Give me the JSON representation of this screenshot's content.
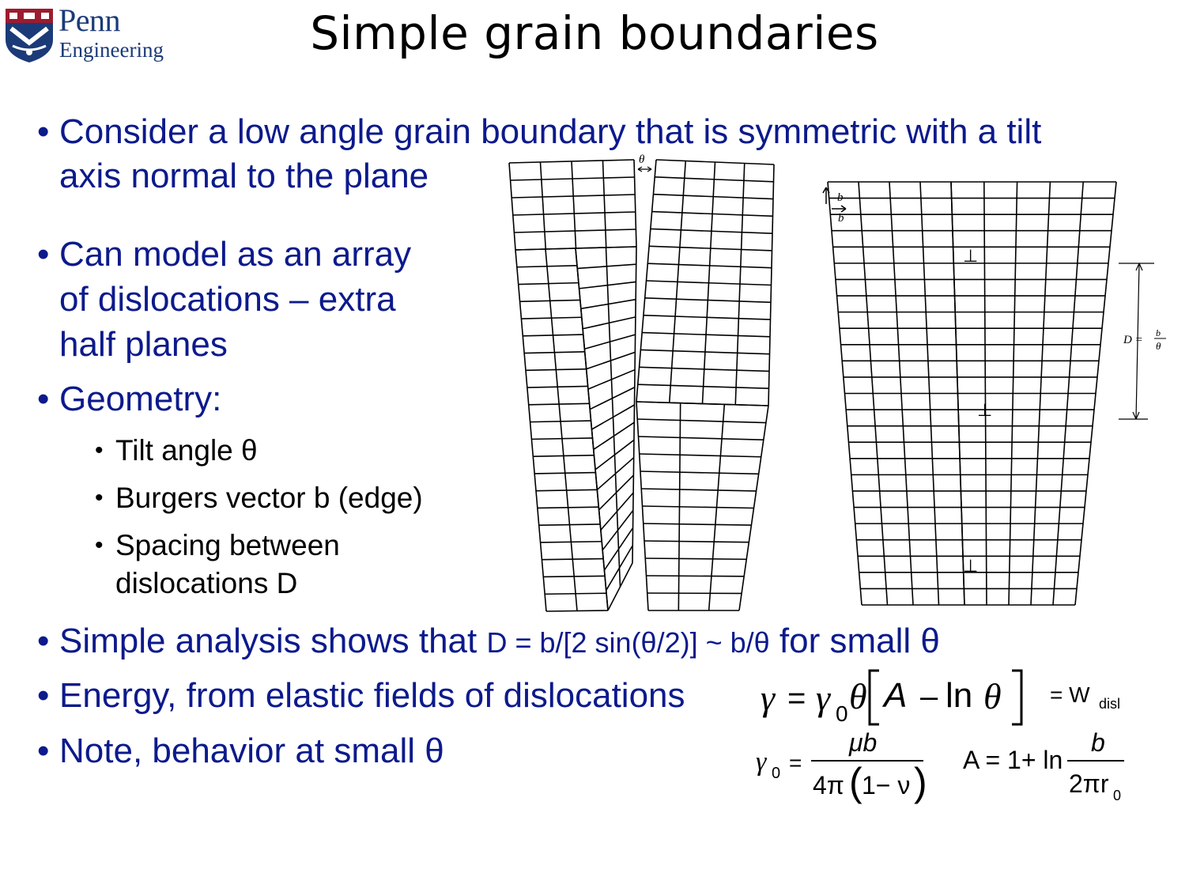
{
  "logo": {
    "line1": "Penn",
    "line2": "Engineering"
  },
  "title": "Simple grain boundaries",
  "bullets": {
    "b1_line1": "Consider a low angle grain boundary that is symmetric with a tilt",
    "b1_line2": "axis normal to the plane",
    "b2_line1": "Can model as an array",
    "b2_line2": "of dislocations – extra",
    "b2_line3": "half planes",
    "b3": "Geometry:",
    "sub1": "Tilt angle θ",
    "sub2": "Burgers vector b (edge)",
    "sub3_line1": "Spacing between",
    "sub3_line2": "dislocations D",
    "b4_prefix": "Simple analysis shows that ",
    "b4_formula": "D = b/[2 sin(θ/2)] ~ b/θ",
    "b4_suffix": " for small θ",
    "b5": "Energy, from elastic fields of dislocations",
    "b6": "Note, behavior at small θ"
  },
  "figure": {
    "theta_label": "θ",
    "b_label_1": "b",
    "b_label_2": "b",
    "D_label": "D = ",
    "D_num": "b",
    "D_den": "θ",
    "dislocation_symbol": "⊥"
  },
  "equations": {
    "gamma": "γ",
    "equals": "=",
    "gamma0": "γ",
    "sub0": "0",
    "theta": "θ",
    "A": "A",
    "minus": "–",
    "ln": "ln",
    "theta2": "θ",
    "wdisl_prefix": "= W",
    "wdisl_sub": "disl",
    "g0_num": "μb",
    "g0_den_a": "4π",
    "g0_den_b": "1− ν",
    "A_def": "A = 1+ ln",
    "A_num": "b",
    "A_den": "2πr",
    "A_den_sub": "0"
  }
}
